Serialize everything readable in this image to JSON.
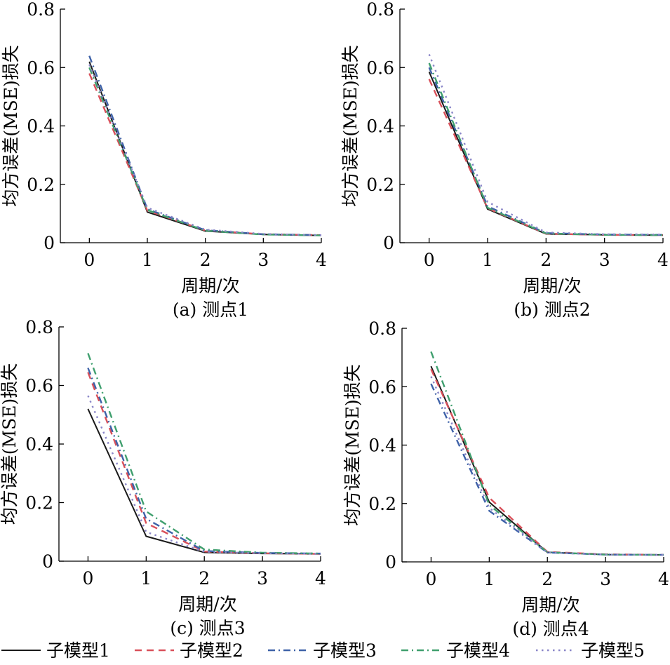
{
  "legend": {
    "position": "bottom",
    "entries": [
      {
        "label": "子模型1",
        "color": "#1a1a1a",
        "dash": "solid"
      },
      {
        "label": "子模型2",
        "color": "#d9505a",
        "dash": "dashed"
      },
      {
        "label": "子模型3",
        "color": "#3e62a8",
        "dash": "dashdot"
      },
      {
        "label": "子模型4",
        "color": "#3f9f6e",
        "dash": "dashdot"
      },
      {
        "label": "子模型5",
        "color": "#8a86c8",
        "dash": "dotted"
      }
    ]
  },
  "chart_data": [
    {
      "type": "line",
      "caption": "(a) 测点1",
      "xlabel": "周期/次",
      "ylabel": "均方误差(MSE)损失",
      "x": [
        0,
        1,
        2,
        3,
        4
      ],
      "xlim": [
        -0.5,
        4
      ],
      "ylim": [
        0,
        0.8
      ],
      "xticks": [
        "0",
        "1",
        "2",
        "3",
        "4"
      ],
      "yticks": [
        "0",
        "0.2",
        "0.4",
        "0.6",
        "0.8"
      ],
      "grid": false,
      "series": [
        {
          "name": "子模型1",
          "values": [
            0.62,
            0.105,
            0.04,
            0.028,
            0.025
          ]
        },
        {
          "name": "子模型2",
          "values": [
            0.58,
            0.11,
            0.042,
            0.029,
            0.026
          ]
        },
        {
          "name": "子模型3",
          "values": [
            0.64,
            0.115,
            0.043,
            0.029,
            0.026
          ]
        },
        {
          "name": "子模型4",
          "values": [
            0.6,
            0.112,
            0.041,
            0.028,
            0.025
          ]
        },
        {
          "name": "子模型5",
          "values": [
            0.61,
            0.12,
            0.045,
            0.03,
            0.026
          ]
        }
      ]
    },
    {
      "type": "line",
      "caption": "(b) 测点2",
      "xlabel": "周期/次",
      "ylabel": "均方误差(MSE)损失",
      "x": [
        0,
        1,
        2,
        3,
        4
      ],
      "xlim": [
        -0.5,
        4
      ],
      "ylim": [
        0,
        0.8
      ],
      "xticks": [
        "0",
        "1",
        "2",
        "3",
        "4"
      ],
      "yticks": [
        "0",
        "0.2",
        "0.4",
        "0.6",
        "0.8"
      ],
      "grid": false,
      "series": [
        {
          "name": "子模型1",
          "values": [
            0.585,
            0.115,
            0.03,
            0.027,
            0.026
          ]
        },
        {
          "name": "子模型2",
          "values": [
            0.56,
            0.118,
            0.031,
            0.027,
            0.026
          ]
        },
        {
          "name": "子模型3",
          "values": [
            0.6,
            0.125,
            0.033,
            0.028,
            0.027
          ]
        },
        {
          "name": "子模型4",
          "values": [
            0.615,
            0.12,
            0.032,
            0.027,
            0.026
          ]
        },
        {
          "name": "子模型5",
          "values": [
            0.645,
            0.14,
            0.035,
            0.029,
            0.028
          ]
        }
      ]
    },
    {
      "type": "line",
      "caption": "(c) 测点3",
      "xlabel": "周期/次",
      "ylabel": "均方误差(MSE)损失",
      "x": [
        0,
        1,
        2,
        3,
        4
      ],
      "xlim": [
        -0.5,
        4
      ],
      "ylim": [
        0,
        0.8
      ],
      "xticks": [
        "0",
        "1",
        "2",
        "3",
        "4"
      ],
      "yticks": [
        "0",
        "0.2",
        "0.4",
        "0.6",
        "0.8"
      ],
      "grid": false,
      "series": [
        {
          "name": "子模型1",
          "values": [
            0.52,
            0.085,
            0.03,
            0.026,
            0.025
          ]
        },
        {
          "name": "子模型2",
          "values": [
            0.645,
            0.13,
            0.033,
            0.027,
            0.025
          ]
        },
        {
          "name": "子模型3",
          "values": [
            0.66,
            0.145,
            0.035,
            0.028,
            0.026
          ]
        },
        {
          "name": "子模型4",
          "values": [
            0.71,
            0.17,
            0.04,
            0.029,
            0.026
          ]
        },
        {
          "name": "子模型5",
          "values": [
            0.565,
            0.1,
            0.032,
            0.027,
            0.025
          ]
        }
      ]
    },
    {
      "type": "line",
      "caption": "(d) 测点4",
      "xlabel": "周期/次",
      "ylabel": "均方误差(MSE)损失",
      "x": [
        0,
        1,
        2,
        3,
        4
      ],
      "xlim": [
        -0.5,
        4
      ],
      "ylim": [
        0,
        0.8
      ],
      "xticks": [
        "0",
        "1",
        "2",
        "3",
        "4"
      ],
      "yticks": [
        "0",
        "0.2",
        "0.4",
        "0.6",
        "0.8"
      ],
      "grid": false,
      "series": [
        {
          "name": "子模型1",
          "values": [
            0.67,
            0.205,
            0.033,
            0.025,
            0.024
          ]
        },
        {
          "name": "子模型2",
          "values": [
            0.66,
            0.22,
            0.034,
            0.026,
            0.024
          ]
        },
        {
          "name": "子模型3",
          "values": [
            0.61,
            0.175,
            0.032,
            0.025,
            0.024
          ]
        },
        {
          "name": "子模型4",
          "values": [
            0.72,
            0.195,
            0.033,
            0.025,
            0.024
          ]
        },
        {
          "name": "子模型5",
          "values": [
            0.635,
            0.185,
            0.032,
            0.025,
            0.024
          ]
        }
      ]
    }
  ]
}
